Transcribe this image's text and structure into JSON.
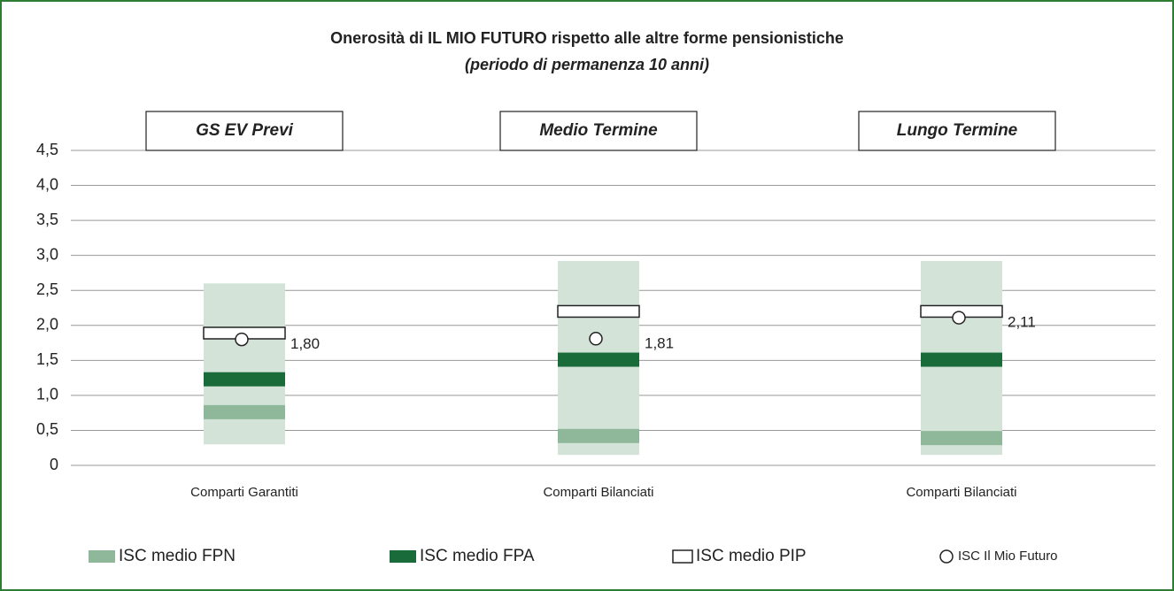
{
  "chart_data": {
    "type": "range-bar",
    "title": "Onerosità di IL MIO FUTURO rispetto alle altre forme pensionistiche",
    "subtitle": "(periodo di permanenza 10 anni)",
    "panels": [
      "GS EV Previ",
      "Medio Termine",
      "Lungo Termine"
    ],
    "categories": [
      "Comparti Garantiti",
      "Comparti Bilanciati",
      "Comparti Bilanciati"
    ],
    "ranges": [
      [
        0.3,
        2.6
      ],
      [
        0.15,
        2.92
      ],
      [
        0.15,
        2.92
      ]
    ],
    "range_color": "#d3e3d8",
    "series": [
      {
        "name": "ISC medio FPN",
        "color": "#8fb89a",
        "values": [
          0.76,
          0.42,
          0.39
        ]
      },
      {
        "name": "ISC medio FPA",
        "color": "#1a6b3a",
        "values": [
          1.23,
          1.51,
          1.51
        ]
      },
      {
        "name": "ISC medio PIP",
        "color": "#ffffff",
        "values": [
          1.89,
          2.2,
          2.2
        ]
      },
      {
        "name": "ISC Il Mio Futuro",
        "color": "#ffffff",
        "values": [
          1.8,
          1.81,
          2.11
        ],
        "value_labels": [
          "1,80",
          "1,81",
          "2,11"
        ]
      }
    ],
    "ylim": [
      0,
      4.5
    ],
    "yticks": [
      0,
      {
        "value": 0.5,
        "label": "0,5"
      },
      {
        "value": 1,
        "label": "1,0"
      },
      {
        "value": 1.5,
        "label": "1,5"
      },
      {
        "value": 2,
        "label": "2,0"
      },
      {
        "value": 2.5,
        "label": "2,5"
      },
      {
        "value": 3,
        "label": "3,0"
      },
      {
        "value": 3.5,
        "label": "3,5"
      },
      {
        "value": 4,
        "label": "4,0"
      },
      {
        "value": 4.5,
        "label": "4,5"
      }
    ],
    "grid": true
  }
}
